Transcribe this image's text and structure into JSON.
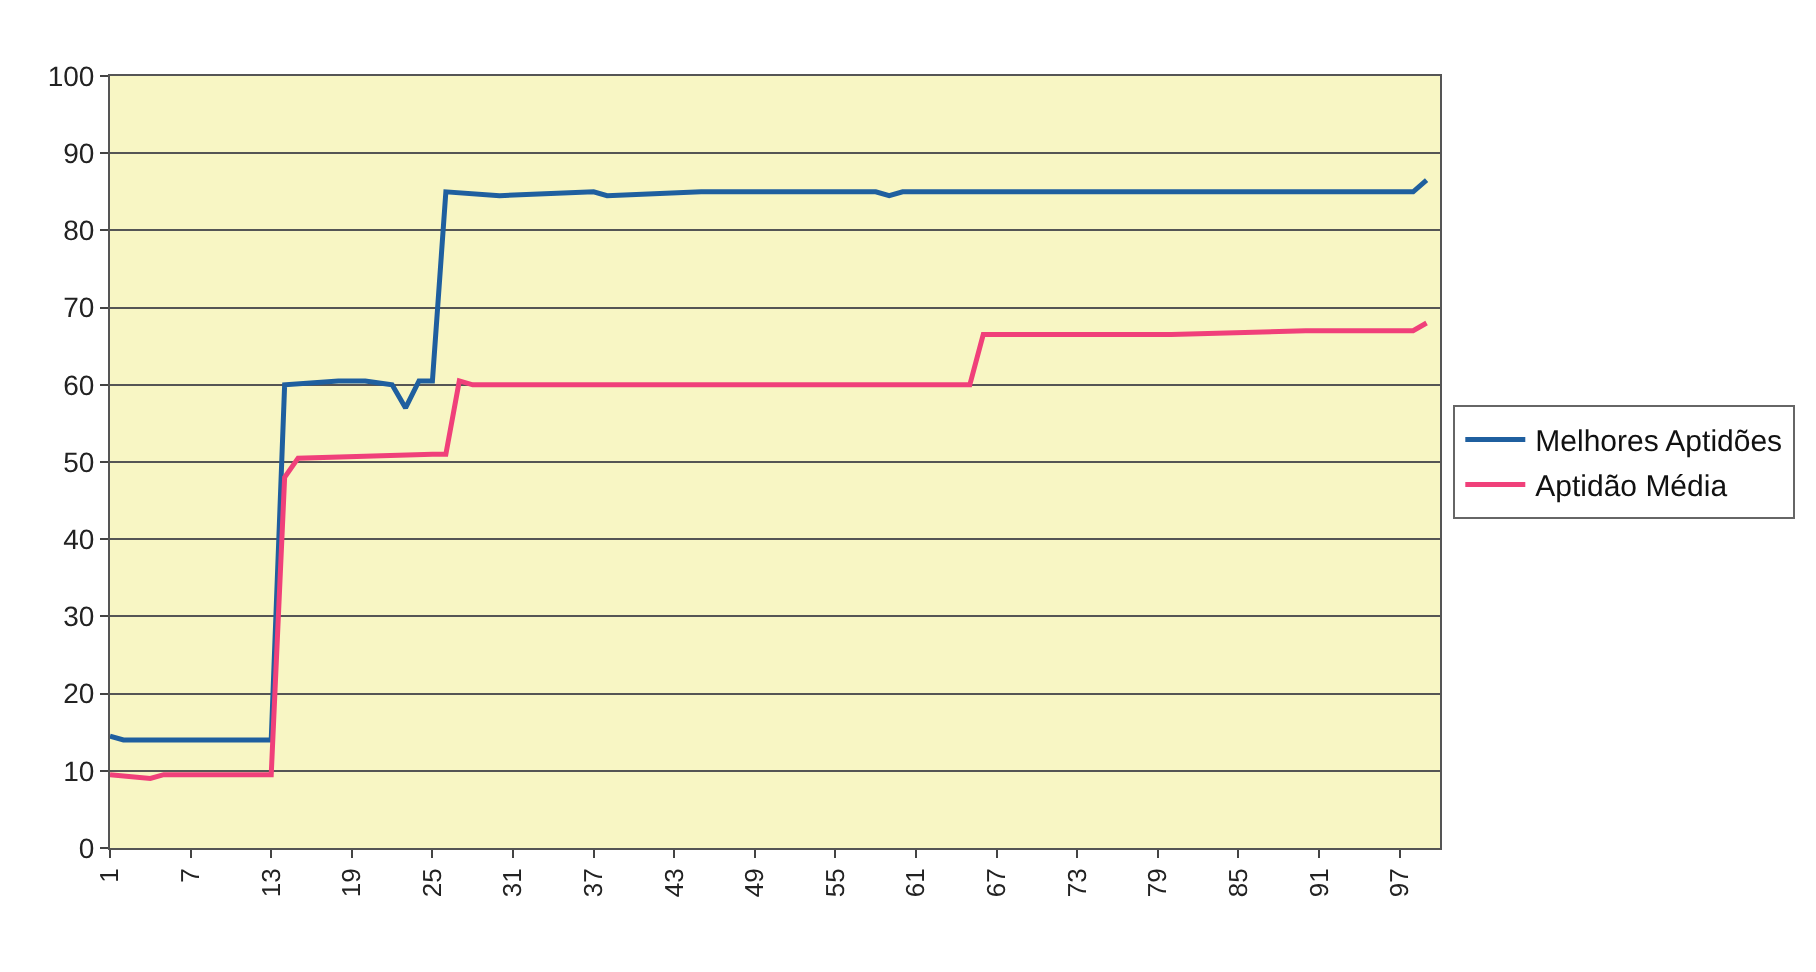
{
  "chart_data": {
    "type": "line",
    "xlim": [
      1,
      100
    ],
    "xticks": [
      1,
      7,
      13,
      19,
      25,
      31,
      37,
      43,
      49,
      55,
      61,
      67,
      73,
      79,
      85,
      91,
      97
    ],
    "ylim": [
      0,
      100
    ],
    "yticks": [
      0,
      10,
      20,
      30,
      40,
      50,
      60,
      70,
      80,
      90,
      100
    ],
    "grid": "y",
    "legend": "right",
    "marker": "none",
    "line_style": "solid",
    "series": [
      {
        "name": "Melhores Aptidões",
        "color": "#1f5f9f",
        "x": [
          1,
          2,
          13,
          14,
          18,
          20,
          22,
          23,
          24,
          25,
          26,
          30,
          37,
          38,
          45,
          58,
          59,
          60,
          98,
          99
        ],
        "values": [
          14.5,
          14,
          14,
          60,
          60.5,
          60.5,
          60,
          57,
          60.5,
          60.5,
          85,
          84.5,
          85,
          84.5,
          85,
          85,
          84.5,
          85,
          85,
          86.5
        ]
      },
      {
        "name": "Aptidão Média",
        "color": "#f0407a",
        "x": [
          1,
          4,
          5,
          13,
          14,
          15,
          25,
          26,
          27,
          28,
          65,
          66,
          80,
          90,
          97,
          98,
          99
        ],
        "values": [
          9.5,
          9,
          9.5,
          9.5,
          48,
          50.5,
          51,
          51,
          60.5,
          60,
          60,
          66.5,
          66.5,
          67,
          67,
          67,
          68
        ]
      }
    ]
  }
}
